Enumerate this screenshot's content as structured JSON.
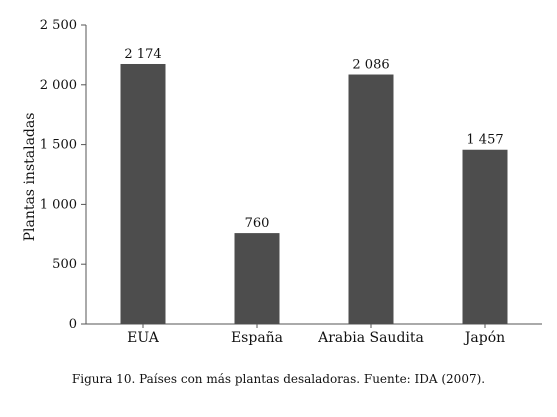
{
  "chart_data": {
    "type": "bar",
    "categories": [
      "EUA",
      "España",
      "Arabia Saudita",
      "Japón"
    ],
    "values": [
      2174,
      760,
      2086,
      1457
    ],
    "value_labels": [
      "2 174",
      "760",
      "2 086",
      "1 457"
    ],
    "ylabel": "Plantas instaladas",
    "xlabel": "",
    "ylim": [
      0,
      2500
    ],
    "yticks": [
      0,
      500,
      1000,
      1500,
      2000,
      2500
    ],
    "ytick_labels": [
      "0",
      "500",
      "1 000",
      "1 500",
      "2 000",
      "2 500"
    ],
    "grid": false,
    "bar_color": "#4d4d4d"
  },
  "caption": "Figura 10. Países con más plantas desaladoras. Fuente: IDA (2007)."
}
